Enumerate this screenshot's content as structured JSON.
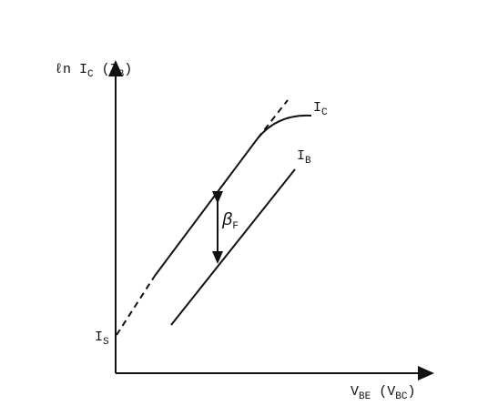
{
  "y_axis_label": [
    "ℓn I",
    "C",
    " (I",
    "B",
    ")"
  ],
  "x_axis_label": [
    "V",
    "BE",
    " (V",
    "BC",
    ")"
  ],
  "curve_labels": {
    "ic": [
      "I",
      "C"
    ],
    "ib": [
      "I",
      "B"
    ],
    "is": [
      "I",
      "S"
    ],
    "beta": [
      "β",
      "F"
    ]
  }
}
